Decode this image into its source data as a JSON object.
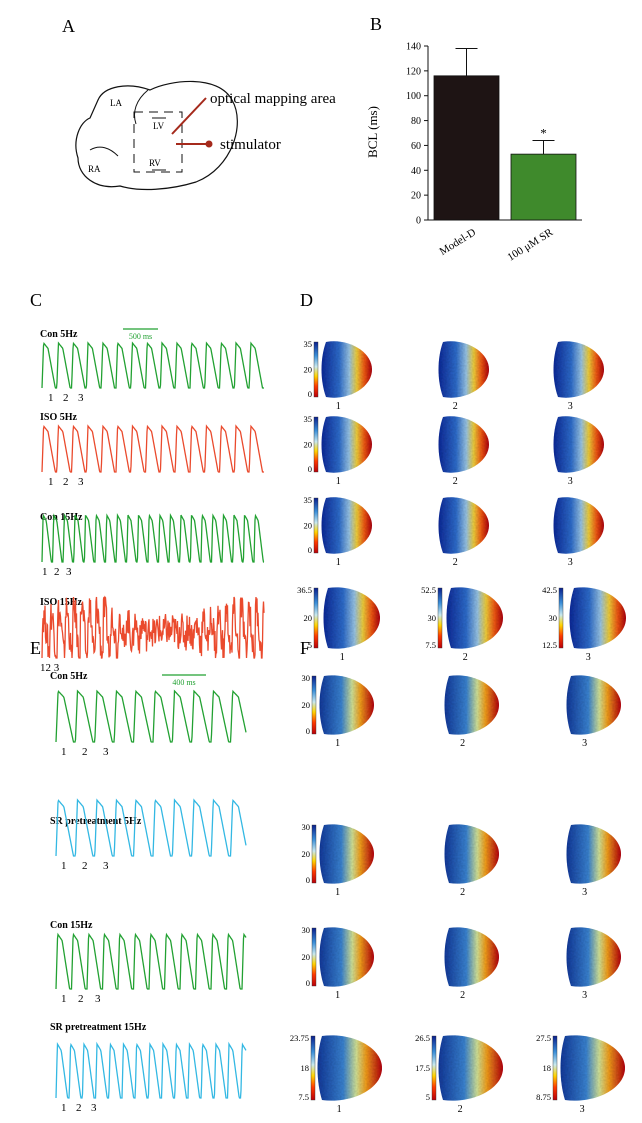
{
  "panels": {
    "A": "A",
    "B": "B",
    "C": "C",
    "D": "D",
    "E": "E",
    "F": "F"
  },
  "panelA": {
    "labels": {
      "la": "LA",
      "ra": "RA",
      "lv": "LV",
      "rv": "RV"
    },
    "optical": "optical mapping area",
    "stimulator": "stimulator"
  },
  "chart_data": {
    "type": "bar",
    "categories": [
      "Model-D",
      "100 μM SR"
    ],
    "values": [
      116,
      53
    ],
    "errors": [
      22,
      11
    ],
    "ylabel": "BCL (ms)",
    "ylim": [
      0,
      140
    ],
    "yticks": [
      0,
      20,
      40,
      60,
      80,
      100,
      120,
      140
    ],
    "significance": [
      "",
      "*"
    ],
    "colors": [
      "#1e1414",
      "#3f8a2c"
    ]
  },
  "panelC": {
    "scale": "500 ms",
    "beats": [
      "1",
      "2",
      "3"
    ],
    "beats_iso15": "12 3",
    "traces": [
      {
        "label": "Con 5Hz",
        "color": "#22a132"
      },
      {
        "label": "ISO 5Hz",
        "color": "#ea4a2d"
      },
      {
        "label": "Con 15Hz",
        "color": "#22a132"
      },
      {
        "label": "ISO 15Hz",
        "color": "#ea4a2d"
      }
    ]
  },
  "panelD": {
    "map_labels": [
      "1",
      "2",
      "3"
    ],
    "colorbars": [
      [
        "35",
        "20",
        "0"
      ],
      [
        "35",
        "20",
        "0"
      ],
      [
        "35",
        "20",
        "0"
      ],
      [
        "36.5",
        "20",
        "5"
      ],
      [
        "52.5",
        "30",
        "7.5"
      ],
      [
        "42.5",
        "30",
        "12.5"
      ]
    ]
  },
  "panelE": {
    "scale": "400 ms",
    "beats": [
      "1",
      "2",
      "3"
    ],
    "traces": [
      {
        "label": "Con 5Hz",
        "color": "#22a132"
      },
      {
        "label": "SR pretreatment 5Hz",
        "color": "#33b8e3"
      },
      {
        "label": "Con 15Hz",
        "color": "#22a132"
      },
      {
        "label": "SR pretreatment 15Hz",
        "color": "#33b8e3"
      }
    ]
  },
  "panelF": {
    "map_labels": [
      "1",
      "2",
      "3"
    ],
    "colorbars": [
      [
        "30",
        "20",
        "0"
      ],
      [
        "30",
        "20",
        "0"
      ],
      [
        "30",
        "20",
        "0"
      ],
      [
        "23.75",
        "18",
        "7.5"
      ],
      [
        "26.5",
        "17.5",
        "5"
      ],
      [
        "27.5",
        "18",
        "8.75"
      ]
    ]
  }
}
